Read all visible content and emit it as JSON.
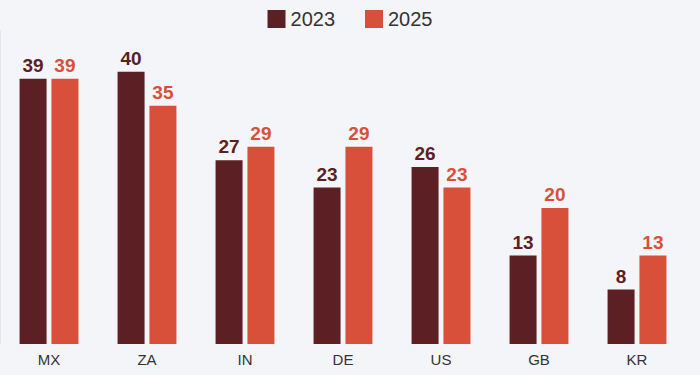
{
  "chart_data": {
    "type": "bar",
    "categories": [
      "MX",
      "ZA",
      "IN",
      "DE",
      "US",
      "GB",
      "KR"
    ],
    "series": [
      {
        "name": "2023",
        "color": "#5c1f24",
        "values": [
          39,
          40,
          27,
          23,
          26,
          13,
          8
        ]
      },
      {
        "name": "2025",
        "color": "#d9503a",
        "values": [
          39,
          35,
          29,
          29,
          23,
          20,
          13
        ]
      }
    ],
    "ylim": [
      0,
      46
    ],
    "yticks": [
      0
    ],
    "grid": false,
    "legend": "top",
    "data_labels": true,
    "tick_labels": "x"
  }
}
